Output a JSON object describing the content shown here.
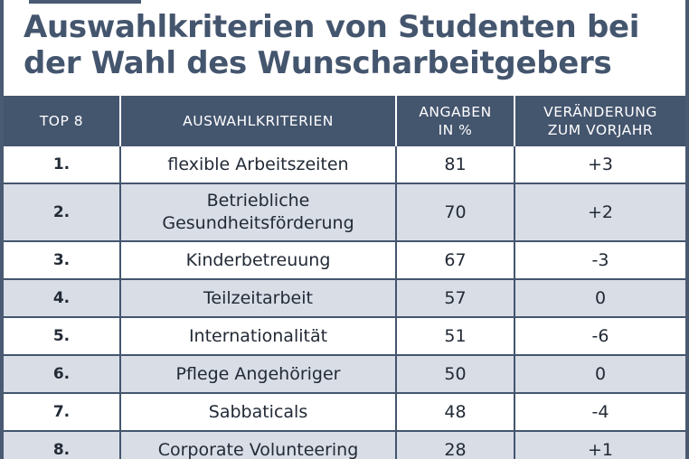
{
  "title_lines": [
    "Auswahlkriterien von Studenten bei",
    "der Wahl des Wunscharbeitgebers"
  ],
  "colors": {
    "header_bg": "#44556e",
    "title": "#44556e",
    "alt_row": "#d8dde6"
  },
  "chart_data": {
    "type": "table",
    "title": "Auswahlkriterien von Studenten bei der Wahl des Wunscharbeitgebers",
    "columns": [
      {
        "label_lines": [
          "TOP 8"
        ]
      },
      {
        "label_lines": [
          "AUSWAHLKRITERIEN"
        ]
      },
      {
        "label_lines": [
          "ANGABEN",
          "IN %"
        ]
      },
      {
        "label_lines": [
          "VERÄNDERUNG",
          "ZUM VORJAHR"
        ]
      }
    ],
    "rows": [
      {
        "rank": "1.",
        "criterion_lines": [
          "flexible Arbeitszeiten"
        ],
        "share": "81",
        "change": "+3"
      },
      {
        "rank": "2.",
        "criterion_lines": [
          "Betriebliche",
          "Gesundheitsförderung"
        ],
        "share": "70",
        "change": "+2"
      },
      {
        "rank": "3.",
        "criterion_lines": [
          "Kinderbetreuung"
        ],
        "share": "67",
        "change": "-3"
      },
      {
        "rank": "4.",
        "criterion_lines": [
          "Teilzeitarbeit"
        ],
        "share": "57",
        "change": "0"
      },
      {
        "rank": "5.",
        "criterion_lines": [
          "Internationalität"
        ],
        "share": "51",
        "change": "-6"
      },
      {
        "rank": "6.",
        "criterion_lines": [
          "Pflege Angehöriger"
        ],
        "share": "50",
        "change": "0"
      },
      {
        "rank": "7.",
        "criterion_lines": [
          "Sabbaticals"
        ],
        "share": "48",
        "change": "-4"
      },
      {
        "rank": "8.",
        "criterion_lines": [
          "Corporate Volunteering"
        ],
        "share": "28",
        "change": "+1"
      }
    ]
  }
}
